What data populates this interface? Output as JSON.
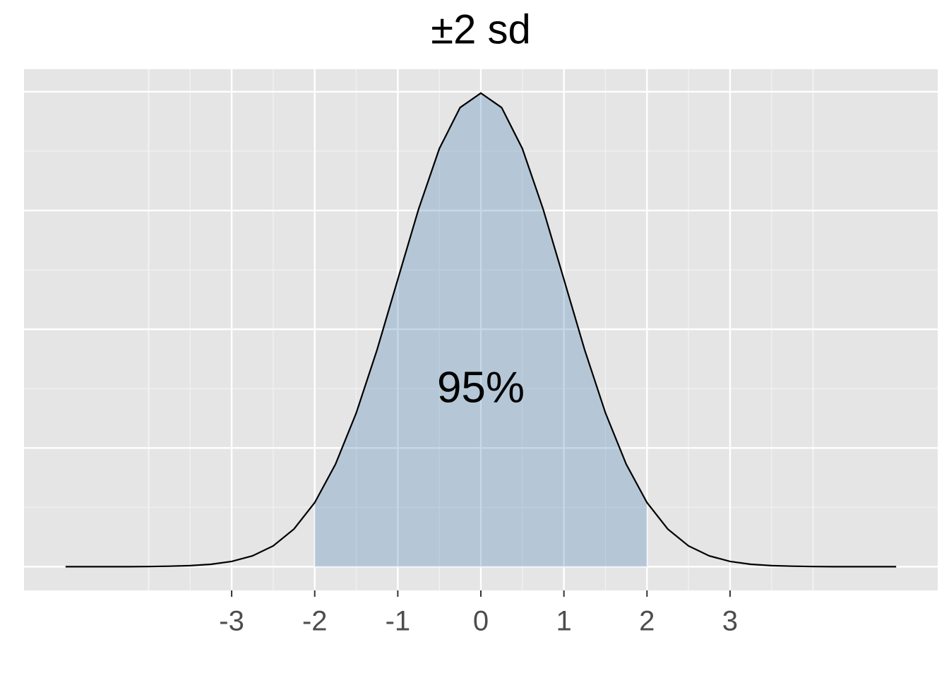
{
  "chart_data": {
    "type": "density",
    "title": "±2 sd",
    "annotation": "95%",
    "x": [
      -5,
      -4.75,
      -4.5,
      -4.25,
      -4,
      -3.75,
      -3.5,
      -3.25,
      -3,
      -2.75,
      -2.5,
      -2.25,
      -2,
      -1.75,
      -1.5,
      -1.25,
      -1,
      -0.75,
      -0.5,
      -0.25,
      0,
      0.25,
      0.5,
      0.75,
      1,
      1.25,
      1.5,
      1.75,
      2,
      2.25,
      2.5,
      2.75,
      3,
      3.25,
      3.5,
      3.75,
      4,
      4.25,
      4.5,
      4.75,
      5
    ],
    "values": [
      0,
      0,
      0,
      0,
      0.0001,
      0.0004,
      0.0009,
      0.002,
      0.0044,
      0.0091,
      0.0175,
      0.0317,
      0.054,
      0.0863,
      0.1295,
      0.1826,
      0.242,
      0.3011,
      0.3521,
      0.3867,
      0.3989,
      0.3867,
      0.3521,
      0.3011,
      0.242,
      0.1826,
      0.1295,
      0.0863,
      0.054,
      0.0317,
      0.0175,
      0.0091,
      0.0044,
      0.002,
      0.0009,
      0.0004,
      0.0001,
      0,
      0,
      0,
      0
    ],
    "shade": [
      -2,
      2
    ],
    "color": "#000000",
    "shade_color": "#4682b4",
    "xlim": [
      -5.5,
      5.5
    ],
    "xticks": [
      -3,
      -2,
      -1,
      0,
      1,
      2,
      3
    ],
    "ylim": [
      -0.02,
      0.419
    ],
    "yticks": [
      0,
      0.1,
      0.2,
      0.3,
      0.4
    ],
    "grid": true
  }
}
